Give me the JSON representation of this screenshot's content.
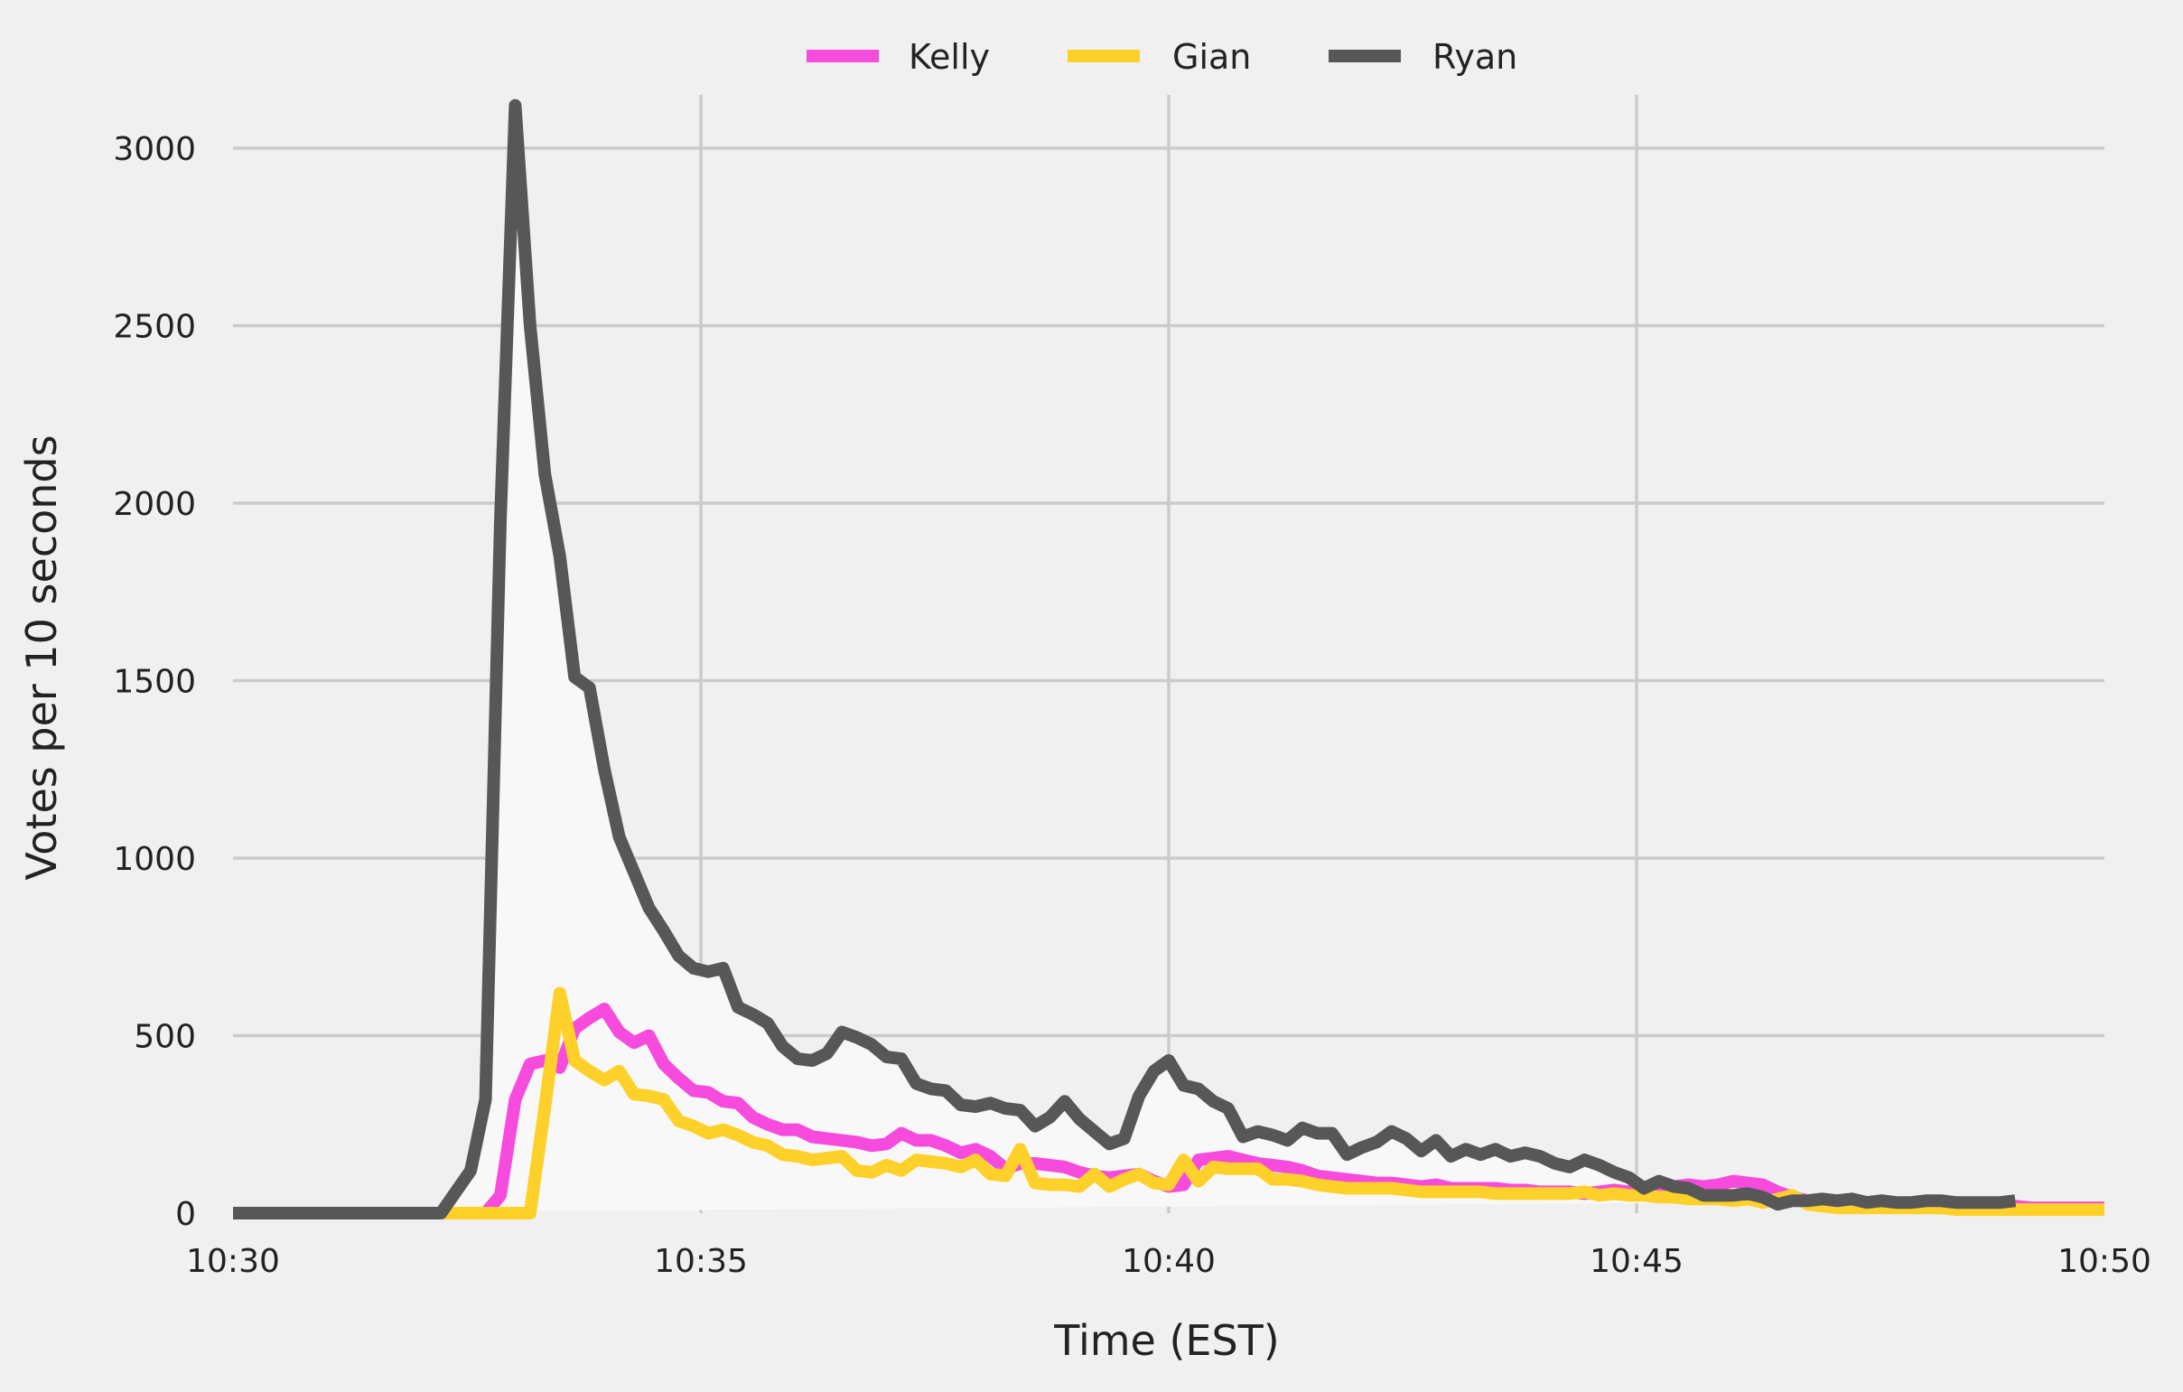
{
  "chart_data": {
    "type": "line",
    "title": "",
    "xlabel": "Time (EST)",
    "ylabel": "Votes per 10 seconds",
    "x_start_label": "10:30",
    "x_step": "10 seconds",
    "x_tick_labels": [
      "10:30",
      "10:35",
      "10:40",
      "10:45",
      "10:50"
    ],
    "y_ticks": [
      0,
      500,
      1000,
      1500,
      2000,
      2500,
      3000
    ],
    "ylim": [
      0,
      3150
    ],
    "grid": true,
    "legend_position": "top-center",
    "series": [
      {
        "name": "Kelly",
        "color": "#f64bdd",
        "values": [
          0,
          0,
          0,
          0,
          0,
          0,
          0,
          0,
          0,
          0,
          0,
          0,
          0,
          0,
          0,
          0,
          0,
          0,
          50,
          320,
          420,
          430,
          410,
          520,
          550,
          575,
          510,
          480,
          500,
          420,
          380,
          345,
          340,
          315,
          310,
          270,
          250,
          235,
          235,
          215,
          210,
          205,
          200,
          190,
          195,
          225,
          205,
          205,
          190,
          170,
          180,
          160,
          125,
          140,
          140,
          135,
          130,
          115,
          105,
          100,
          105,
          110,
          90,
          75,
          80,
          150,
          155,
          160,
          150,
          140,
          135,
          130,
          120,
          105,
          100,
          95,
          90,
          85,
          85,
          80,
          75,
          80,
          70,
          70,
          70,
          70,
          65,
          65,
          60,
          60,
          60,
          55,
          60,
          65,
          60,
          65,
          70,
          75,
          80,
          75,
          80,
          90,
          85,
          80,
          60,
          45,
          35,
          30,
          30,
          30,
          25,
          25,
          25,
          25,
          25,
          20,
          20,
          20,
          20,
          20,
          20,
          15,
          15,
          15,
          15,
          15,
          15
        ]
      },
      {
        "name": "Gian",
        "color": "#fed12a",
        "values": [
          0,
          0,
          0,
          0,
          0,
          0,
          0,
          0,
          0,
          0,
          0,
          0,
          0,
          0,
          0,
          0,
          0,
          0,
          0,
          0,
          0,
          300,
          620,
          430,
          400,
          375,
          400,
          335,
          330,
          320,
          260,
          245,
          225,
          235,
          220,
          200,
          190,
          165,
          160,
          150,
          155,
          160,
          120,
          115,
          135,
          120,
          150,
          145,
          140,
          130,
          150,
          110,
          105,
          180,
          85,
          80,
          80,
          75,
          110,
          75,
          95,
          110,
          85,
          80,
          150,
          90,
          130,
          125,
          125,
          125,
          95,
          95,
          90,
          80,
          75,
          70,
          70,
          70,
          70,
          65,
          60,
          60,
          60,
          60,
          60,
          55,
          55,
          55,
          55,
          55,
          55,
          60,
          50,
          55,
          50,
          50,
          45,
          45,
          40,
          40,
          40,
          35,
          40,
          30,
          40,
          50,
          25,
          20,
          15,
          15,
          15,
          15,
          15,
          15,
          15,
          15,
          10,
          10,
          10,
          10,
          10,
          10,
          10,
          10,
          10,
          10,
          10
        ]
      },
      {
        "name": "Ryan",
        "color": "#575757",
        "values": [
          0,
          0,
          0,
          0,
          0,
          0,
          0,
          0,
          0,
          0,
          0,
          0,
          0,
          0,
          0,
          60,
          120,
          320,
          1950,
          3120,
          2500,
          2080,
          1850,
          1510,
          1480,
          1250,
          1060,
          960,
          860,
          795,
          725,
          690,
          680,
          690,
          580,
          560,
          535,
          470,
          435,
          430,
          450,
          510,
          495,
          475,
          440,
          435,
          365,
          350,
          345,
          305,
          300,
          310,
          295,
          290,
          245,
          270,
          315,
          265,
          230,
          195,
          210,
          330,
          400,
          430,
          360,
          350,
          315,
          295,
          215,
          230,
          220,
          205,
          240,
          225,
          225,
          165,
          185,
          200,
          230,
          210,
          175,
          205,
          160,
          180,
          165,
          180,
          160,
          170,
          160,
          140,
          130,
          150,
          135,
          115,
          100,
          70,
          90,
          75,
          70,
          50,
          50,
          50,
          55,
          45,
          25,
          35,
          35,
          40,
          35,
          40,
          30,
          35,
          30,
          30,
          35,
          35,
          30,
          30,
          30,
          30,
          35
        ]
      }
    ]
  }
}
